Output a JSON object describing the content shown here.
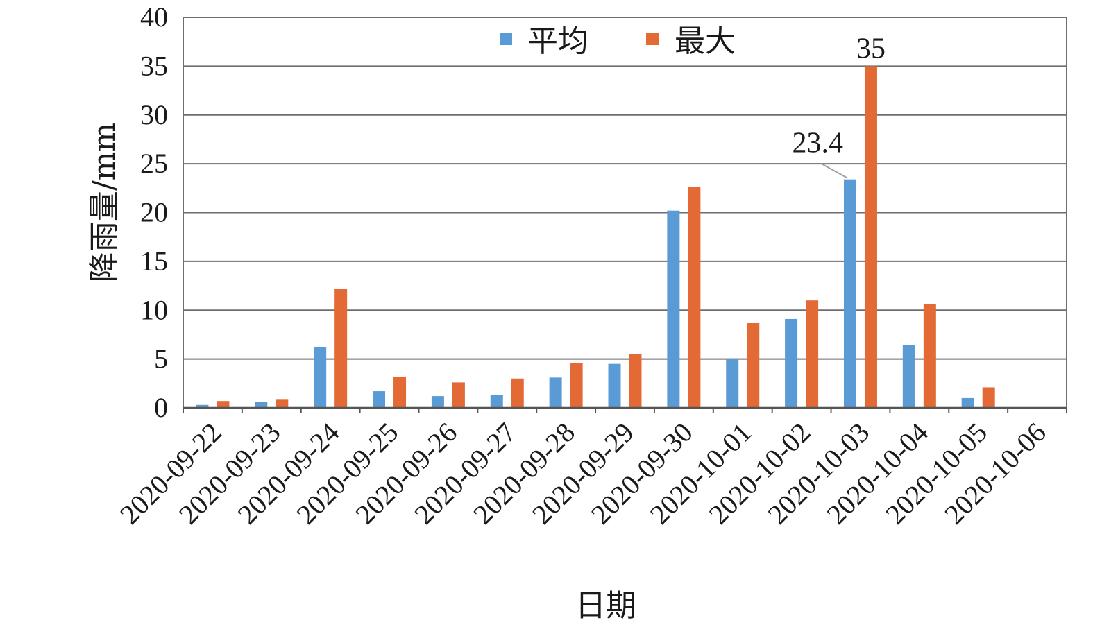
{
  "chart_data": {
    "type": "bar",
    "title": "",
    "xlabel": "日期",
    "ylabel": "降雨量/mm",
    "ylim": [
      0,
      40
    ],
    "yticks": [
      0,
      5,
      10,
      15,
      20,
      25,
      30,
      35,
      40
    ],
    "grid": true,
    "legend_position": "top-center",
    "categories": [
      "2020-09-22",
      "2020-09-23",
      "2020-09-24",
      "2020-09-25",
      "2020-09-26",
      "2020-09-27",
      "2020-09-28",
      "2020-09-29",
      "2020-09-30",
      "2020-10-01",
      "2020-10-02",
      "2020-10-03",
      "2020-10-04",
      "2020-10-05",
      "2020-10-06"
    ],
    "series": [
      {
        "name": "平均",
        "color": "#5b9bd5",
        "values": [
          0.3,
          0.6,
          6.2,
          1.7,
          1.2,
          1.3,
          3.1,
          4.5,
          20.2,
          5.0,
          9.1,
          23.4,
          6.4,
          1.0,
          0
        ]
      },
      {
        "name": "最大",
        "color": "#e46a35",
        "values": [
          0.7,
          0.9,
          12.2,
          3.2,
          2.6,
          3.0,
          4.6,
          5.5,
          22.6,
          8.7,
          11.0,
          35,
          10.6,
          2.1,
          0
        ]
      }
    ],
    "annotations": [
      {
        "series": "平均",
        "category": "2020-10-03",
        "text": "23.4",
        "leader_line": true
      },
      {
        "series": "最大",
        "category": "2020-10-03",
        "text": "35"
      }
    ]
  }
}
